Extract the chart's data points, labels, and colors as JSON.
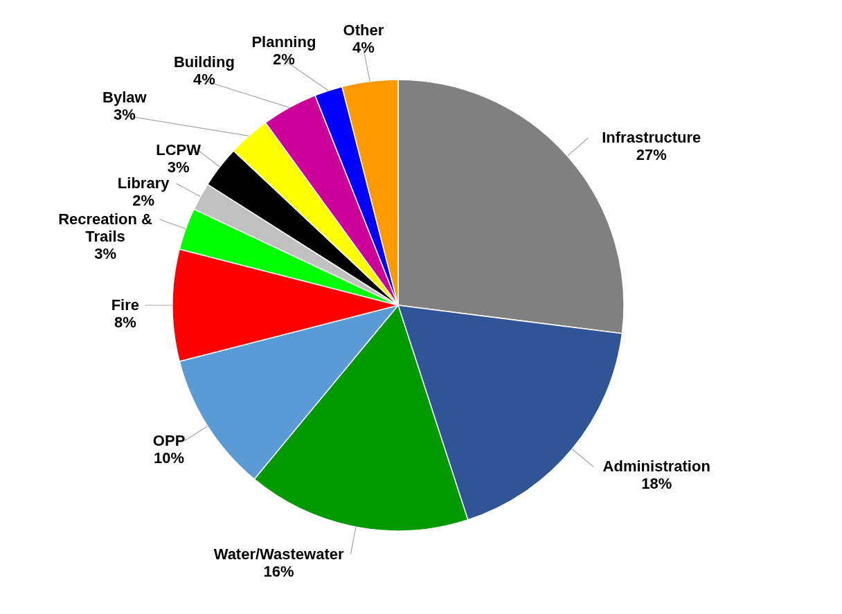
{
  "chart_data": {
    "type": "pie",
    "categories": [
      "Infrastructure",
      "Administration",
      "Water/Wastewater",
      "OPP",
      "Fire",
      "Recreation & Trails",
      "Library",
      "LCPW",
      "Bylaw",
      "Building",
      "Planning",
      "Other"
    ],
    "values": [
      27,
      18,
      16,
      10,
      8,
      3,
      2,
      3,
      3,
      4,
      2,
      4
    ],
    "value_labels": [
      "27%",
      "18%",
      "16%",
      "10%",
      "8%",
      "3%",
      "2%",
      "3%",
      "3%",
      "4%",
      "2%",
      "4%"
    ],
    "colors": [
      "#808080",
      "#2f5597",
      "#009900",
      "#5b9bd5",
      "#ff0000",
      "#00ff00",
      "#c0c0c0",
      "#000000",
      "#ffff00",
      "#cc0099",
      "#0000ff",
      "#ff9900"
    ]
  }
}
